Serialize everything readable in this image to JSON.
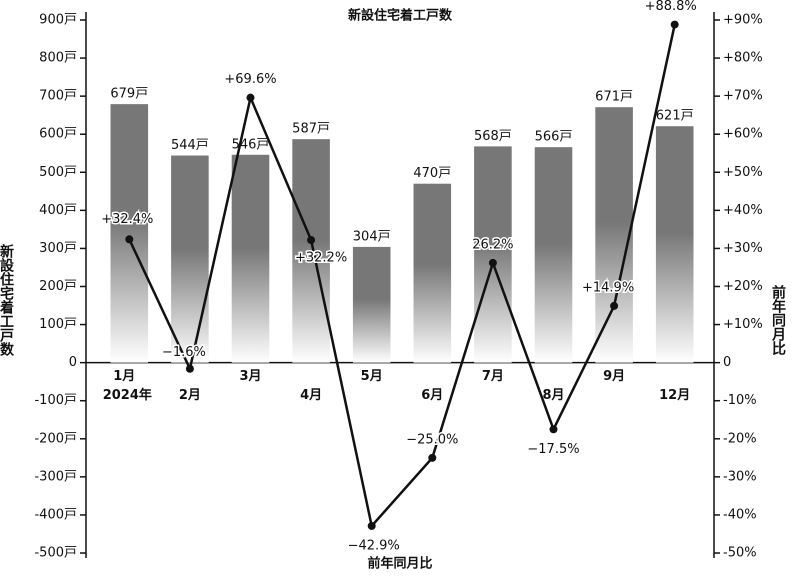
{
  "chart_data": {
    "type": "combo",
    "title": "新設住宅着工戸数",
    "ylabel": "新設住宅着工戸数",
    "y2label": "前年同月比",
    "categories": [
      "1月",
      "2月",
      "3月",
      "4月",
      "5月",
      "6月",
      "7月",
      "8月",
      "9月",
      "12月"
    ],
    "x_annotation": "2024年",
    "series": [
      {
        "type": "bar",
        "color": "#777777",
        "values": [
          679,
          544,
          546,
          587,
          304,
          470,
          568,
          566,
          671,
          621
        ],
        "value_labels": [
          "679戸",
          "544戸",
          "546戸",
          "587戸",
          "304戸",
          "470戸",
          "568戸",
          "566戸",
          "671戸",
          "621戸"
        ]
      },
      {
        "name": "前年同月比",
        "type": "line",
        "axis": "y2",
        "color": "#111111",
        "values": [
          32.4,
          -1.6,
          69.6,
          32.2,
          -42.9,
          -25.0,
          26.2,
          -17.5,
          14.9,
          88.8
        ],
        "value_labels": [
          "+32.4%",
          "−1.6%",
          "+69.6%",
          "+32.2%",
          "−42.9%",
          "−25.0%",
          "26.2%",
          "−17.5%",
          "+14.9%",
          "+88.8%"
        ]
      }
    ],
    "ylim": [
      -500,
      900
    ],
    "yticks": [
      {
        "value": -500,
        "label": "-500戸"
      },
      {
        "value": -400,
        "label": "-400戸"
      },
      {
        "value": -300,
        "label": "-300戸"
      },
      {
        "value": -200,
        "label": "-200戸"
      },
      {
        "value": -100,
        "label": "-100戸"
      },
      0,
      {
        "value": 100,
        "label": "100戸"
      },
      {
        "value": 200,
        "label": "200戸"
      },
      {
        "value": 300,
        "label": "300戸"
      },
      {
        "value": 400,
        "label": "400戸"
      },
      {
        "value": 500,
        "label": "500戸"
      },
      {
        "value": 600,
        "label": "600戸"
      },
      {
        "value": 700,
        "label": "700戸"
      },
      {
        "value": 800,
        "label": "800戸"
      },
      {
        "value": 900,
        "label": "900戸"
      }
    ],
    "y2lim": [
      -50,
      90
    ],
    "y2ticks": [
      {
        "value": -50,
        "label": "-50%"
      },
      {
        "value": -40,
        "label": "-40%"
      },
      {
        "value": -30,
        "label": "-30%"
      },
      {
        "value": -20,
        "label": "-20%"
      },
      {
        "value": -10,
        "label": "-10%"
      },
      0,
      {
        "value": 10,
        "label": "+10%"
      },
      {
        "value": 20,
        "label": "+20%"
      },
      {
        "value": 30,
        "label": "+30%"
      },
      {
        "value": 40,
        "label": "+40%"
      },
      {
        "value": 50,
        "label": "+50%"
      },
      {
        "value": 60,
        "label": "+60%"
      },
      {
        "value": 70,
        "label": "+70%"
      },
      {
        "value": 80,
        "label": "+80%"
      },
      {
        "value": 90,
        "label": "+90%"
      }
    ],
    "grid": false
  }
}
